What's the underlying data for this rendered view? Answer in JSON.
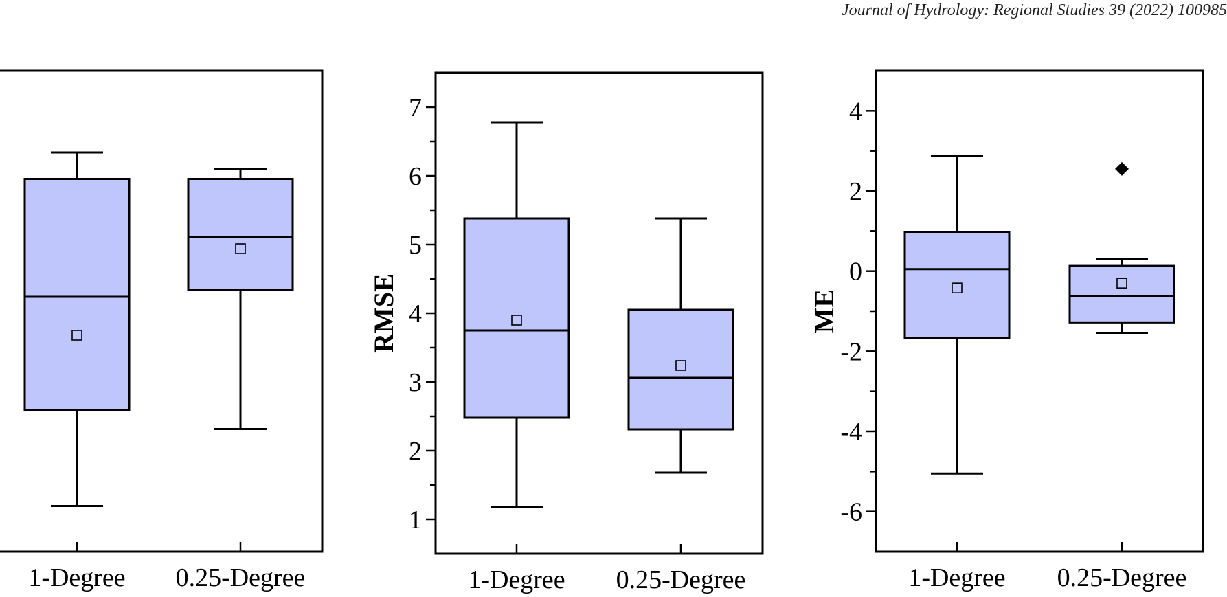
{
  "header": {
    "journal": "Journal of Hydrology: Regional Studies 39 (2022) 100985"
  },
  "colors": {
    "box_fill": "#bfc6fb",
    "stroke": "#000000"
  },
  "chart_data": [
    {
      "type": "box",
      "categories": [
        "1-Degree",
        "0.25-Degree"
      ],
      "ylabel": "",
      "show_tick_labels": false,
      "ylim": [
        0,
        10
      ],
      "ytick_step": 1,
      "boxes": [
        {
          "category": "1-Degree",
          "whisker_low": 0.95,
          "q1": 2.95,
          "median": 5.3,
          "q3": 7.75,
          "whisker_high": 8.3,
          "mean": 4.5,
          "outliers": []
        },
        {
          "category": "0.25-Degree",
          "whisker_low": 2.55,
          "q1": 5.45,
          "median": 6.55,
          "q3": 7.75,
          "whisker_high": 7.95,
          "mean": 6.3,
          "outliers": []
        }
      ]
    },
    {
      "type": "box",
      "categories": [
        "1-Degree",
        "0.25-Degree"
      ],
      "ylabel": "RMSE",
      "show_tick_labels": true,
      "ylim": [
        0.5,
        7.5
      ],
      "yticks": [
        1,
        2,
        3,
        4,
        5,
        6,
        7
      ],
      "ytick_step": 0.5,
      "boxes": [
        {
          "category": "1-Degree",
          "whisker_low": 1.18,
          "q1": 2.48,
          "median": 3.75,
          "q3": 5.38,
          "whisker_high": 6.78,
          "mean": 3.9,
          "outliers": []
        },
        {
          "category": "0.25-Degree",
          "whisker_low": 1.68,
          "q1": 2.31,
          "median": 3.06,
          "q3": 4.05,
          "whisker_high": 5.38,
          "mean": 3.24,
          "outliers": []
        }
      ]
    },
    {
      "type": "box",
      "categories": [
        "1-Degree",
        "0.25-Degree"
      ],
      "ylabel": "ME",
      "show_tick_labels": true,
      "ylim": [
        -7,
        5
      ],
      "yticks": [
        -6,
        -4,
        -2,
        0,
        2,
        4
      ],
      "ytick_step": 1,
      "boxes": [
        {
          "category": "1-Degree",
          "whisker_low": -5.05,
          "q1": -1.67,
          "median": 0.05,
          "q3": 0.98,
          "whisker_high": 2.88,
          "mean": -0.42,
          "outliers": []
        },
        {
          "category": "0.25-Degree",
          "whisker_low": -1.54,
          "q1": -1.28,
          "median": -0.62,
          "q3": 0.13,
          "whisker_high": 0.31,
          "mean": -0.3,
          "outliers": [
            2.55
          ]
        }
      ]
    }
  ]
}
